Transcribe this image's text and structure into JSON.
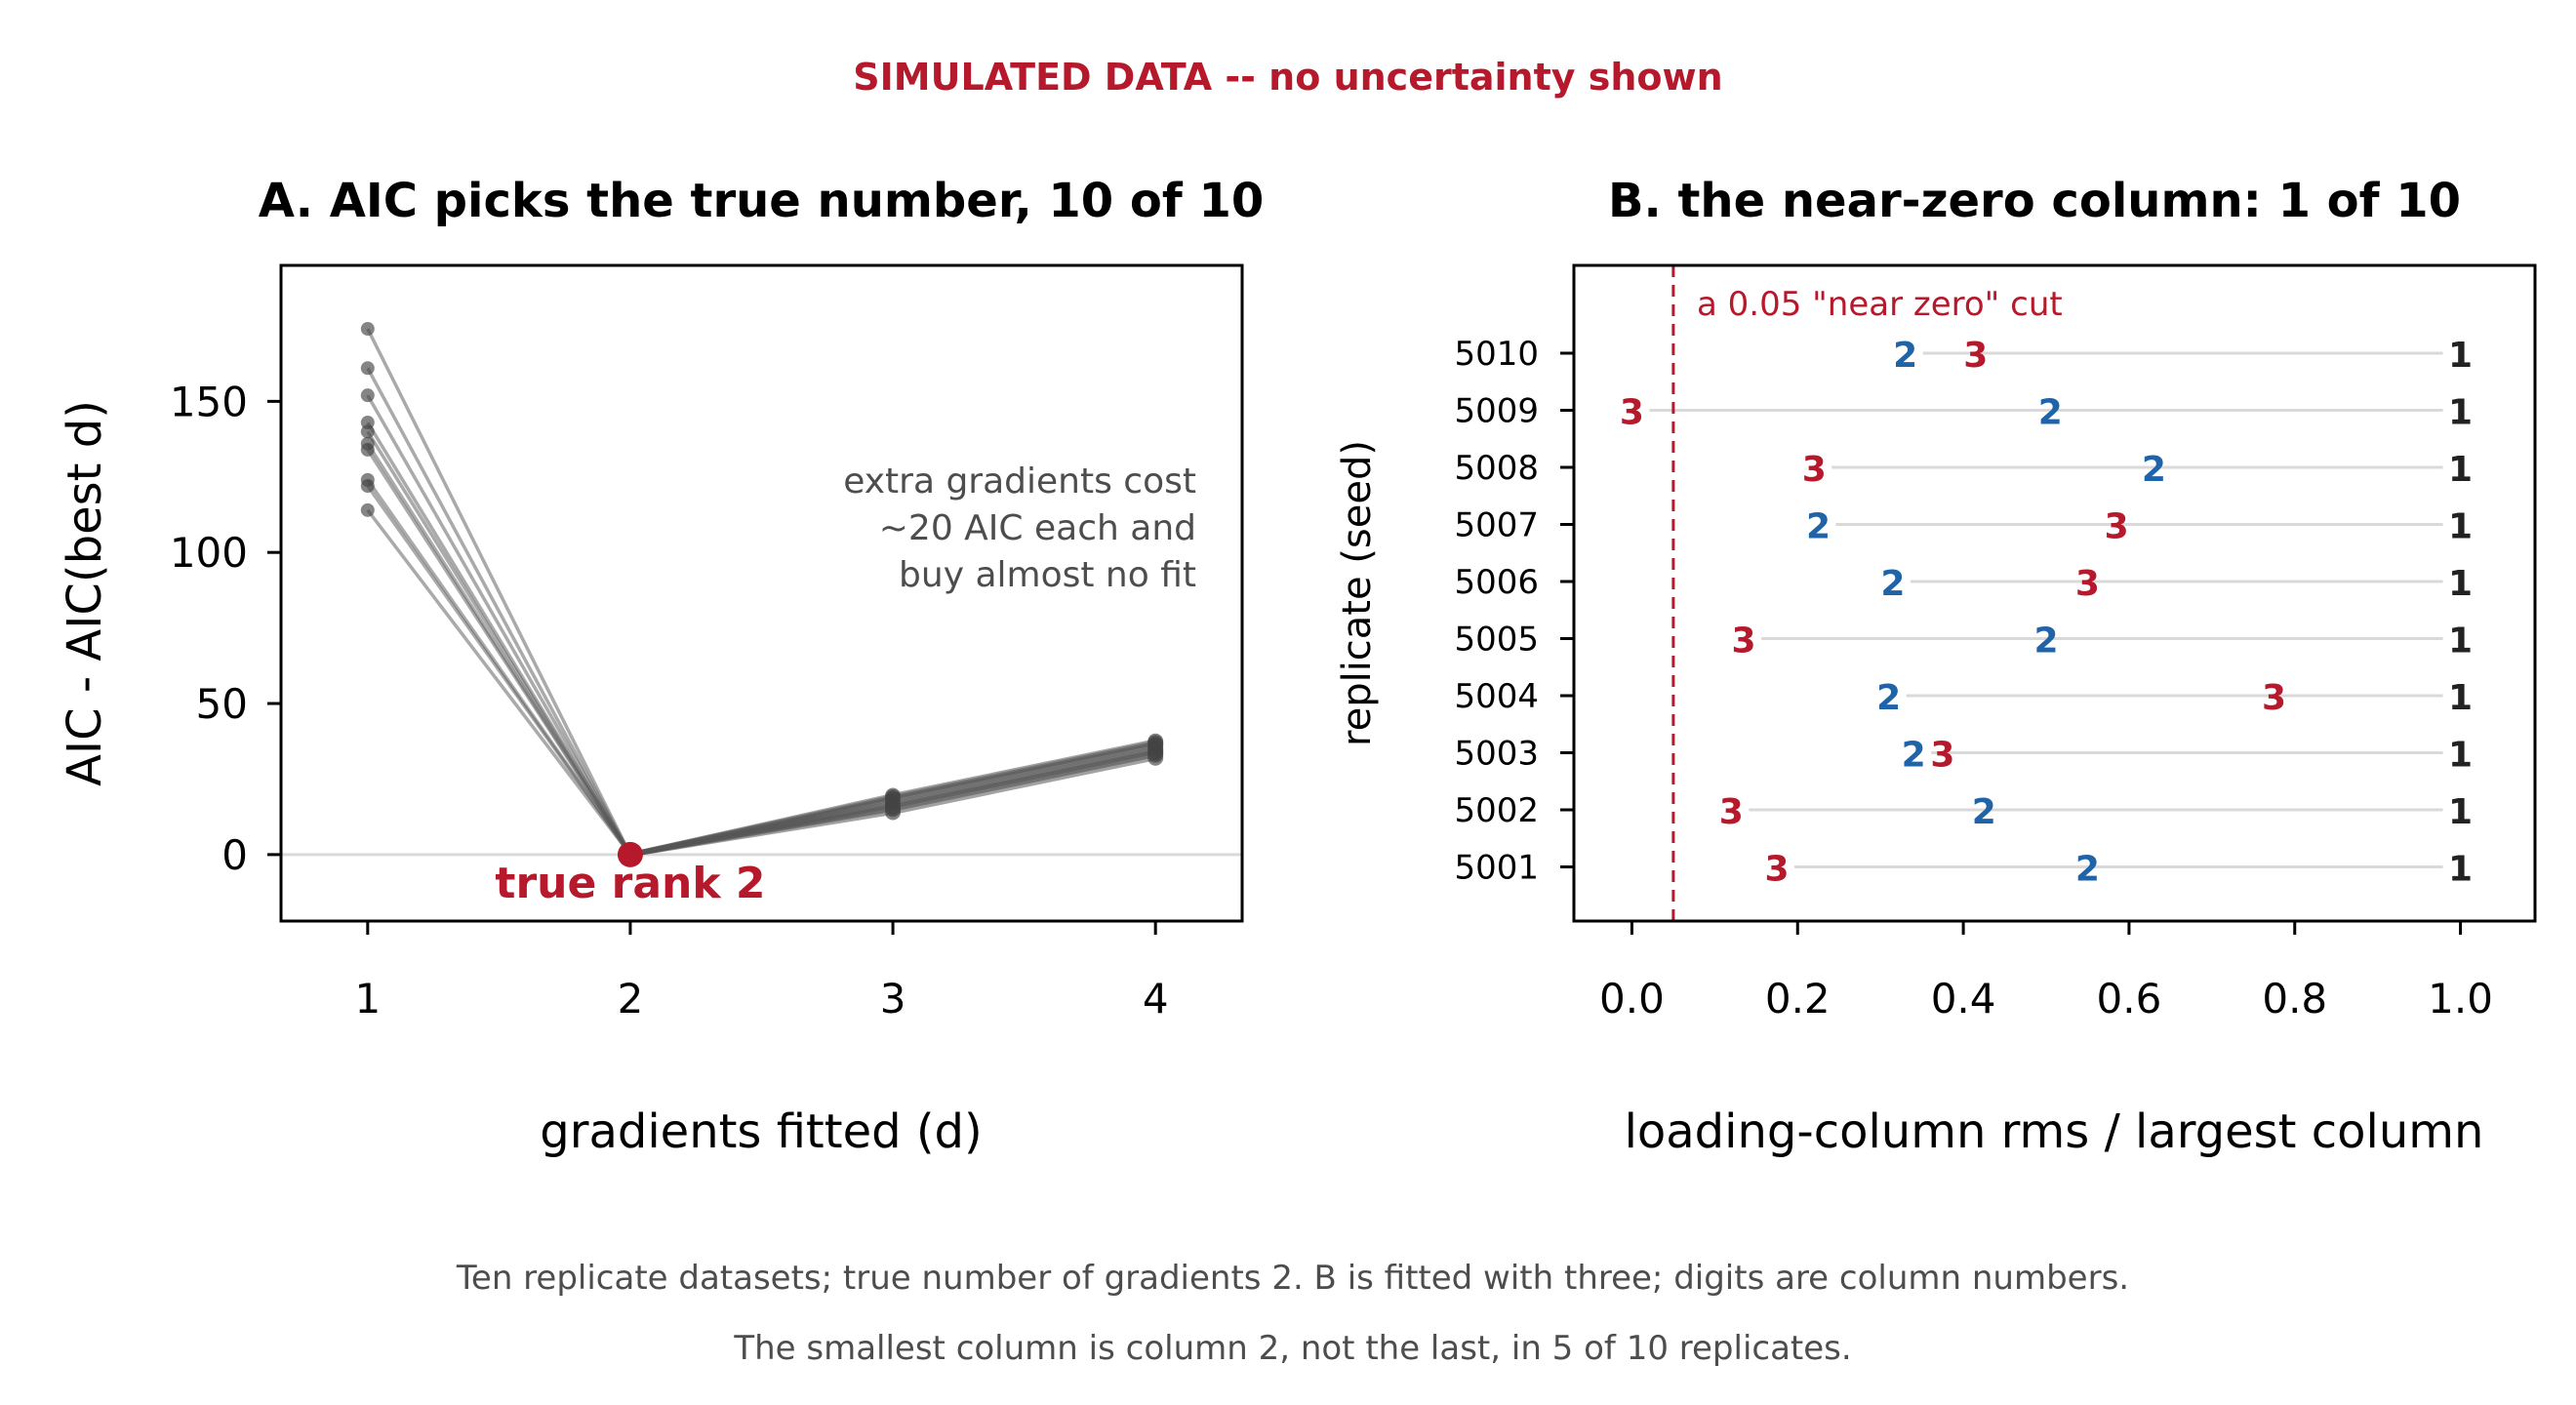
{
  "header": "SIMULATED DATA -- no uncertainty shown",
  "colors": {
    "accent_red": "#b5192b",
    "accent_blue": "#1f63a8",
    "line_gray": "#555555",
    "text_dark": "#222222",
    "note_gray": "#4d4d4d"
  },
  "chart_data": [
    {
      "panel": "A",
      "type": "line",
      "title": "A. AIC picks the true number, 10 of 10",
      "xlabel": "gradients fitted (d)",
      "ylabel": "AIC - AIC(best d)",
      "x": [
        1,
        2,
        3,
        4
      ],
      "xlim": [
        0.67,
        4.33
      ],
      "ylim": [
        -22,
        195
      ],
      "xticks": [
        "1",
        "2",
        "3",
        "4"
      ],
      "yticks": [
        "0",
        "50",
        "100",
        "150"
      ],
      "reference_line_y": 0,
      "series": [
        {
          "values": [
            174,
            0,
            19.5,
            37.5
          ]
        },
        {
          "values": [
            161,
            0,
            19,
            37
          ]
        },
        {
          "values": [
            152,
            0,
            18.5,
            36.5
          ]
        },
        {
          "values": [
            143,
            0,
            18,
            36
          ]
        },
        {
          "values": [
            140,
            0,
            17,
            35
          ]
        },
        {
          "values": [
            136,
            0,
            16.5,
            34.5
          ]
        },
        {
          "values": [
            134,
            0,
            16,
            34
          ]
        },
        {
          "values": [
            124,
            0,
            15.5,
            33.5
          ]
        },
        {
          "values": [
            122,
            0,
            15,
            33
          ]
        },
        {
          "values": [
            114,
            0,
            14,
            32
          ]
        }
      ],
      "highlight": {
        "x": 2,
        "y": 0,
        "label": "true rank 2"
      },
      "annotation": [
        "extra gradients cost",
        "~20 AIC each and",
        "buy almost no fit"
      ]
    },
    {
      "panel": "B",
      "type": "scatter",
      "title": "B. the near-zero column: 1 of 10",
      "xlabel": "loading-column rms / largest column",
      "ylabel": "replicate (seed)",
      "xlim": [
        -0.07,
        1.09
      ],
      "xticks": [
        "0.0",
        "0.2",
        "0.4",
        "0.6",
        "0.8",
        "1.0"
      ],
      "cutoff": {
        "x": 0.05,
        "label": "a 0.05 \"near zero\" cut"
      },
      "replicates": [
        {
          "seed": "5010",
          "col1": 1.0,
          "col2": 0.33,
          "col3": 0.415
        },
        {
          "seed": "5009",
          "col1": 1.0,
          "col2": 0.505,
          "col3": 0.0
        },
        {
          "seed": "5008",
          "col1": 1.0,
          "col2": 0.63,
          "col3": 0.22
        },
        {
          "seed": "5007",
          "col1": 1.0,
          "col2": 0.225,
          "col3": 0.585
        },
        {
          "seed": "5006",
          "col1": 1.0,
          "col2": 0.315,
          "col3": 0.55
        },
        {
          "seed": "5005",
          "col1": 1.0,
          "col2": 0.5,
          "col3": 0.135
        },
        {
          "seed": "5004",
          "col1": 1.0,
          "col2": 0.31,
          "col3": 0.775
        },
        {
          "seed": "5003",
          "col1": 1.0,
          "col2": 0.34,
          "col3": 0.375
        },
        {
          "seed": "5002",
          "col1": 1.0,
          "col2": 0.425,
          "col3": 0.12
        },
        {
          "seed": "5001",
          "col1": 1.0,
          "col2": 0.55,
          "col3": 0.175
        }
      ]
    }
  ],
  "caption": [
    "Ten replicate datasets; true number of gradients 2. B is fitted with three; digits are column numbers.",
    "The smallest column is column 2, not the last, in 5 of 10 replicates."
  ]
}
